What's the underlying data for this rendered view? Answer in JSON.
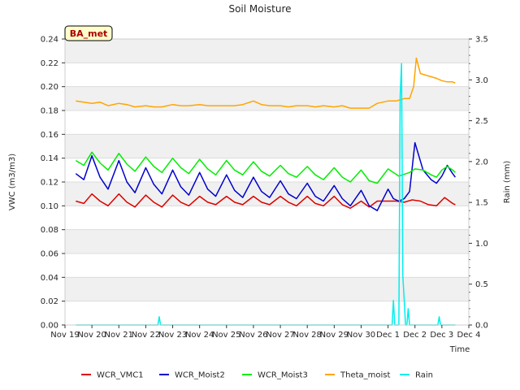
{
  "chart_data": {
    "type": "line",
    "title": "Soil Moisture",
    "xlabel": "Time",
    "ylabel": "VWC (m3/m3)",
    "ylabel_right": "Rain (mm)",
    "site_label": "BA_met",
    "ylim": [
      0.0,
      0.24
    ],
    "ylim_right": [
      0.0,
      3.5
    ],
    "xlim": [
      0,
      15
    ],
    "x_ticks": [
      0,
      1,
      2,
      3,
      4,
      5,
      6,
      7,
      8,
      9,
      10,
      11,
      12,
      13,
      14,
      15
    ],
    "x_tick_labels": [
      "Nov 19",
      "Nov 20",
      "Nov 21",
      "Nov 22",
      "Nov 23",
      "Nov 24",
      "Nov 25",
      "Nov 26",
      "Nov 27",
      "Nov 28",
      "Nov 29",
      "Nov 30",
      "Dec 1",
      "Dec 2",
      "Dec 3",
      "Dec 4"
    ],
    "y_ticks": [
      0.0,
      0.02,
      0.04,
      0.06,
      0.08,
      0.1,
      0.12,
      0.14,
      0.16,
      0.18,
      0.2,
      0.22,
      0.24
    ],
    "y_tick_labels": [
      "0.00",
      "0.02",
      "0.04",
      "0.06",
      "0.08",
      "0.10",
      "0.12",
      "0.14",
      "0.16",
      "0.18",
      "0.20",
      "0.22",
      "0.24"
    ],
    "y_ticks_right": [
      0.0,
      0.5,
      1.0,
      1.5,
      2.0,
      2.5,
      3.0,
      3.5
    ],
    "y_tick_labels_right": [
      "0.0",
      "0.5",
      "1.0",
      "1.5",
      "2.0",
      "2.5",
      "3.0",
      "3.5"
    ],
    "series": [
      {
        "name": "WCR_VMC1",
        "color": "#dd0000",
        "axis": "left",
        "x": [
          0.4,
          0.7,
          1.0,
          1.3,
          1.6,
          2.0,
          2.3,
          2.6,
          3.0,
          3.3,
          3.6,
          4.0,
          4.3,
          4.6,
          5.0,
          5.3,
          5.6,
          6.0,
          6.3,
          6.6,
          7.0,
          7.3,
          7.6,
          8.0,
          8.3,
          8.6,
          9.0,
          9.3,
          9.6,
          10.0,
          10.3,
          10.6,
          11.0,
          11.3,
          11.6,
          12.0,
          12.3,
          12.6,
          12.9,
          13.2,
          13.5,
          13.8,
          14.1,
          14.4,
          14.5
        ],
        "values": [
          0.104,
          0.102,
          0.11,
          0.104,
          0.1,
          0.11,
          0.103,
          0.099,
          0.109,
          0.103,
          0.099,
          0.109,
          0.103,
          0.1,
          0.108,
          0.103,
          0.101,
          0.108,
          0.103,
          0.101,
          0.108,
          0.103,
          0.101,
          0.108,
          0.103,
          0.1,
          0.108,
          0.102,
          0.1,
          0.108,
          0.101,
          0.098,
          0.104,
          0.099,
          0.104,
          0.104,
          0.104,
          0.103,
          0.105,
          0.104,
          0.101,
          0.1,
          0.107,
          0.102,
          0.101
        ]
      },
      {
        "name": "WCR_Moist2",
        "color": "#0000cc",
        "axis": "left",
        "x": [
          0.4,
          0.7,
          1.0,
          1.3,
          1.6,
          2.0,
          2.3,
          2.6,
          3.0,
          3.3,
          3.6,
          4.0,
          4.3,
          4.6,
          5.0,
          5.3,
          5.6,
          6.0,
          6.3,
          6.6,
          7.0,
          7.3,
          7.6,
          8.0,
          8.3,
          8.6,
          9.0,
          9.3,
          9.6,
          10.0,
          10.3,
          10.6,
          11.0,
          11.3,
          11.6,
          12.0,
          12.2,
          12.4,
          12.6,
          12.8,
          13.0,
          13.3,
          13.6,
          13.8,
          14.0,
          14.2,
          14.4,
          14.5
        ],
        "values": [
          0.127,
          0.122,
          0.142,
          0.124,
          0.114,
          0.138,
          0.12,
          0.111,
          0.132,
          0.118,
          0.11,
          0.13,
          0.116,
          0.109,
          0.128,
          0.114,
          0.108,
          0.126,
          0.113,
          0.107,
          0.124,
          0.112,
          0.107,
          0.121,
          0.11,
          0.106,
          0.119,
          0.108,
          0.104,
          0.117,
          0.106,
          0.1,
          0.113,
          0.1,
          0.096,
          0.114,
          0.106,
          0.104,
          0.106,
          0.112,
          0.153,
          0.13,
          0.122,
          0.119,
          0.125,
          0.134,
          0.127,
          0.124
        ]
      },
      {
        "name": "WCR_Moist3",
        "color": "#00ee00",
        "axis": "left",
        "x": [
          0.4,
          0.7,
          1.0,
          1.3,
          1.6,
          2.0,
          2.3,
          2.6,
          3.0,
          3.3,
          3.6,
          4.0,
          4.3,
          4.6,
          5.0,
          5.3,
          5.6,
          6.0,
          6.3,
          6.6,
          7.0,
          7.3,
          7.6,
          8.0,
          8.3,
          8.6,
          9.0,
          9.3,
          9.6,
          10.0,
          10.3,
          10.6,
          11.0,
          11.3,
          11.6,
          12.0,
          12.4,
          12.8,
          13.0,
          13.3,
          13.6,
          13.8,
          14.0,
          14.2,
          14.4,
          14.5
        ],
        "values": [
          0.138,
          0.134,
          0.145,
          0.136,
          0.13,
          0.144,
          0.135,
          0.129,
          0.141,
          0.133,
          0.128,
          0.14,
          0.132,
          0.127,
          0.139,
          0.131,
          0.126,
          0.138,
          0.13,
          0.126,
          0.137,
          0.129,
          0.125,
          0.134,
          0.127,
          0.124,
          0.133,
          0.126,
          0.122,
          0.132,
          0.124,
          0.12,
          0.13,
          0.121,
          0.119,
          0.131,
          0.125,
          0.128,
          0.131,
          0.13,
          0.126,
          0.124,
          0.13,
          0.133,
          0.13,
          0.128
        ]
      },
      {
        "name": "Theta_moist",
        "color": "#ffa500",
        "axis": "left",
        "x": [
          0.4,
          0.7,
          1.0,
          1.3,
          1.6,
          2.0,
          2.3,
          2.6,
          3.0,
          3.3,
          3.6,
          4.0,
          4.3,
          4.6,
          5.0,
          5.3,
          5.6,
          6.0,
          6.3,
          6.6,
          7.0,
          7.3,
          7.6,
          8.0,
          8.3,
          8.6,
          9.0,
          9.3,
          9.6,
          10.0,
          10.3,
          10.6,
          11.0,
          11.3,
          11.6,
          12.0,
          12.3,
          12.6,
          12.8,
          12.95,
          13.05,
          13.2,
          13.5,
          13.8,
          14.0,
          14.2,
          14.4,
          14.5
        ],
        "values": [
          0.188,
          0.187,
          0.186,
          0.187,
          0.184,
          0.186,
          0.185,
          0.183,
          0.184,
          0.183,
          0.183,
          0.185,
          0.184,
          0.184,
          0.185,
          0.184,
          0.184,
          0.184,
          0.184,
          0.185,
          0.188,
          0.185,
          0.184,
          0.184,
          0.183,
          0.184,
          0.184,
          0.183,
          0.184,
          0.183,
          0.184,
          0.182,
          0.182,
          0.182,
          0.186,
          0.188,
          0.188,
          0.19,
          0.19,
          0.2,
          0.224,
          0.211,
          0.209,
          0.207,
          0.205,
          0.204,
          0.204,
          0.203
        ]
      },
      {
        "name": "Rain",
        "color": "#00eeee",
        "axis": "right",
        "x": [
          0.4,
          3.45,
          3.5,
          3.55,
          12.15,
          12.2,
          12.25,
          12.3,
          12.4,
          12.45,
          12.5,
          12.55,
          12.6,
          12.65,
          12.7,
          12.75,
          12.8,
          13.85,
          13.9,
          13.95,
          14.5
        ],
        "values": [
          0.0,
          0.0,
          0.1,
          0.0,
          0.0,
          0.3,
          0.0,
          0.0,
          0.0,
          2.8,
          3.2,
          0.6,
          0.3,
          0.0,
          0.0,
          0.2,
          0.0,
          0.0,
          0.1,
          0.0,
          0.0
        ]
      }
    ]
  }
}
